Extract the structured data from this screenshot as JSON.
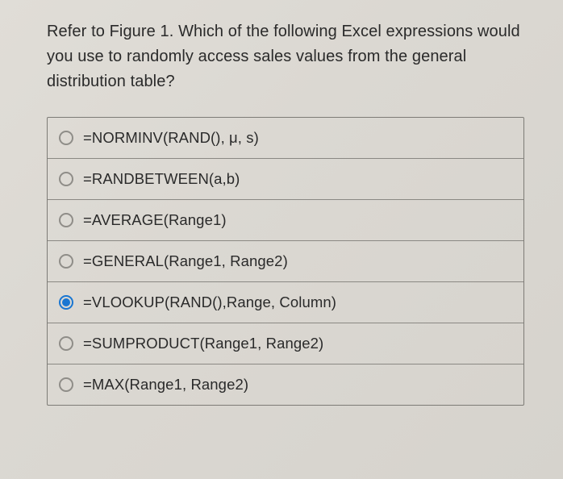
{
  "question": "Refer to Figure 1. Which of the following Excel expressions would you use to randomly access sales values from the general distribution table?",
  "options": [
    {
      "label": "=NORMINV(RAND(), μ, s)",
      "selected": false
    },
    {
      "label": "=RANDBETWEEN(a,b)",
      "selected": false
    },
    {
      "label": "=AVERAGE(Range1)",
      "selected": false
    },
    {
      "label": "=GENERAL(Range1, Range2)",
      "selected": false
    },
    {
      "label": "=VLOOKUP(RAND(),Range, Column)",
      "selected": true
    },
    {
      "label": "=SUMPRODUCT(Range1, Range2)",
      "selected": false
    },
    {
      "label": "=MAX(Range1, Range2)",
      "selected": false
    }
  ],
  "colors": {
    "background": "#dcdad5",
    "text": "#2a2a2a",
    "border": "#7d7b76",
    "radio_unselected": "#8f8d88",
    "radio_selected": "#1976d2"
  },
  "typography": {
    "question_fontsize": 20,
    "option_fontsize": 18.5,
    "font_family": "Helvetica Neue, Arial, sans-serif"
  }
}
